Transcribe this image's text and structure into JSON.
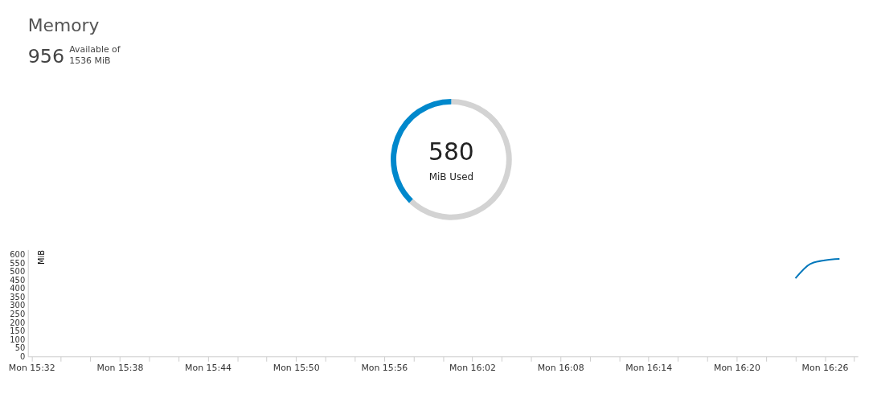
{
  "chart_data": [
    {
      "type": "donut",
      "values": [
        956,
        580
      ],
      "colors": [
        "#d3d3d3",
        "#0088cc"
      ],
      "value_labels": [
        null,
        "580"
      ],
      "annotations": [
        "Memory",
        "956",
        "Available of",
        "1536 MiB",
        "MiB Used"
      ]
    },
    {
      "type": "line",
      "ylabel": "MiB",
      "grid": false,
      "marker": "none",
      "line_style": "solid",
      "categories": [
        "Mon 15:32",
        null,
        null,
        null,
        null,
        null,
        "Mon 15:38",
        null,
        null,
        null,
        null,
        null,
        "Mon 15:44",
        null,
        null,
        null,
        null,
        null,
        "Mon 15:50",
        null,
        null,
        null,
        null,
        null,
        "Mon 15:56",
        null,
        null,
        null,
        null,
        null,
        "Mon 16:02",
        null,
        null,
        null,
        null,
        null,
        "Mon 16:08",
        null,
        null,
        null,
        null,
        null,
        "Mon 16:14",
        null,
        null,
        null,
        null,
        null,
        "Mon 16:20",
        null,
        null,
        null,
        null,
        null,
        "Mon 16:26",
        null,
        null
      ],
      "series": [
        {
          "color": "#0077bb",
          "values": [
            null,
            null,
            null,
            null,
            null,
            null,
            null,
            null,
            null,
            null,
            null,
            null,
            null,
            null,
            null,
            null,
            null,
            null,
            null,
            null,
            null,
            null,
            null,
            null,
            null,
            null,
            null,
            null,
            null,
            null,
            null,
            null,
            null,
            null,
            null,
            null,
            null,
            null,
            null,
            null,
            null,
            null,
            null,
            null,
            null,
            null,
            null,
            null,
            null,
            null,
            null,
            null,
            460,
            545,
            567,
            575,
            null
          ]
        }
      ],
      "ylim": [
        0,
        630
      ],
      "yticks": [
        0,
        50,
        100,
        150,
        200,
        250,
        300,
        350,
        400,
        450,
        500,
        550,
        600
      ]
    }
  ]
}
